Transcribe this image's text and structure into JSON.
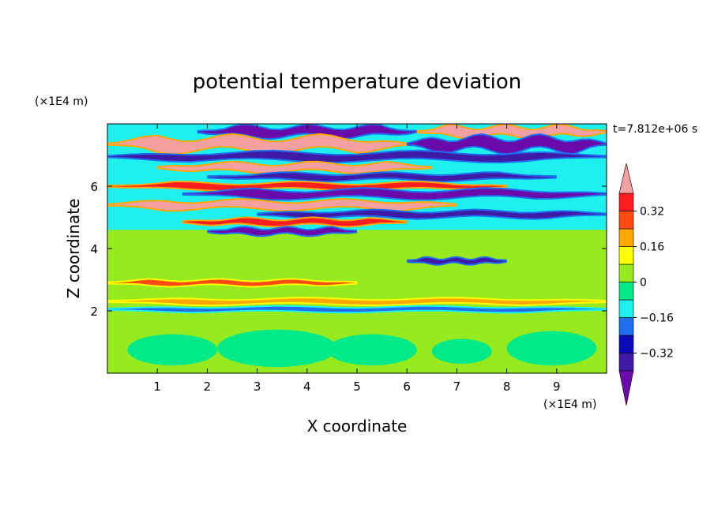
{
  "chart_data": {
    "type": "heatmap",
    "title": "potential temperature deviation",
    "xlabel": "X coordinate",
    "ylabel": "Z coordinate",
    "x_unit": "(×1E4 m)",
    "y_unit": "(×1E4 m)",
    "time_label": "t=7.812e+06 s",
    "xlim": [
      0,
      10
    ],
    "ylim": [
      0,
      8
    ],
    "x_ticks": [
      1,
      2,
      3,
      4,
      5,
      6,
      7,
      8,
      9
    ],
    "y_ticks": [
      2,
      4,
      6
    ],
    "colorbar": {
      "levels": [
        -0.4,
        -0.32,
        -0.24,
        -0.16,
        -0.08,
        0,
        0.08,
        0.16,
        0.24,
        0.32,
        0.4
      ],
      "labels": [
        "0.32",
        "0.16",
        "0",
        "−0.16",
        "−0.32"
      ],
      "label_values": [
        0.32,
        0.16,
        0,
        -0.16,
        -0.32
      ],
      "colors": [
        "#6a0aaa",
        "#3e1aa6",
        "#0a0ab8",
        "#1e6eef",
        "#1ef0f0",
        "#00ea8a",
        "#96ea1e",
        "#ffff00",
        "#ffa800",
        "#ff4a10",
        "#ff1e1e",
        "#f5a0a0"
      ],
      "extend": "both"
    },
    "bands": [
      {
        "z": 7.75,
        "value": -0.45,
        "thickness": 0.25,
        "x0": 1.8,
        "x1": 6.2
      },
      {
        "z": 7.75,
        "value": 0.45,
        "thickness": 0.25,
        "x0": 6.2,
        "x1": 10
      },
      {
        "z": 7.35,
        "value": 0.45,
        "thickness": 0.35,
        "x0": 0,
        "x1": 6.0
      },
      {
        "z": 7.35,
        "value": -0.45,
        "thickness": 0.35,
        "x0": 6.0,
        "x1": 10
      },
      {
        "z": 6.95,
        "value": -0.36,
        "thickness": 0.2,
        "x0": 0,
        "x1": 10
      },
      {
        "z": 6.6,
        "value": 0.45,
        "thickness": 0.2,
        "x0": 1.0,
        "x1": 6.5
      },
      {
        "z": 6.3,
        "value": -0.36,
        "thickness": 0.15,
        "x0": 2.0,
        "x1": 9.0
      },
      {
        "z": 6.0,
        "value": 0.36,
        "thickness": 0.15,
        "x0": 0,
        "x1": 8.0
      },
      {
        "z": 5.75,
        "value": -0.45,
        "thickness": 0.2,
        "x0": 1.5,
        "x1": 10
      },
      {
        "z": 5.4,
        "value": 0.45,
        "thickness": 0.2,
        "x0": 0,
        "x1": 7.0
      },
      {
        "z": 5.1,
        "value": -0.36,
        "thickness": 0.15,
        "x0": 3.0,
        "x1": 10
      },
      {
        "z": 4.85,
        "value": 0.36,
        "thickness": 0.15,
        "x0": 1.5,
        "x1": 6.0
      },
      {
        "z": 4.55,
        "value": -0.45,
        "thickness": 0.15,
        "x0": 2.0,
        "x1": 5.0
      },
      {
        "z": 3.6,
        "value": -0.36,
        "thickness": 0.12,
        "x0": 6.0,
        "x1": 8.0
      },
      {
        "z": 2.9,
        "value": 0.28,
        "thickness": 0.12,
        "x0": 0,
        "x1": 5.0
      },
      {
        "z": 2.3,
        "value": 0.2,
        "thickness": 0.12,
        "x0": 0,
        "x1": 10
      },
      {
        "z": 2.05,
        "value": -0.2,
        "thickness": 0.1,
        "x0": 0,
        "x1": 10
      }
    ],
    "cells": [
      {
        "x": 1.3,
        "z": 0.75,
        "rx": 0.9,
        "rz": 0.5,
        "value": -0.02
      },
      {
        "x": 3.4,
        "z": 0.8,
        "rx": 1.2,
        "rz": 0.6,
        "value": -0.02
      },
      {
        "x": 5.3,
        "z": 0.75,
        "rx": 0.9,
        "rz": 0.5,
        "value": -0.02
      },
      {
        "x": 7.1,
        "z": 0.7,
        "rx": 0.6,
        "rz": 0.4,
        "value": -0.02
      },
      {
        "x": 8.9,
        "z": 0.8,
        "rx": 0.9,
        "rz": 0.55,
        "value": -0.02
      }
    ]
  }
}
